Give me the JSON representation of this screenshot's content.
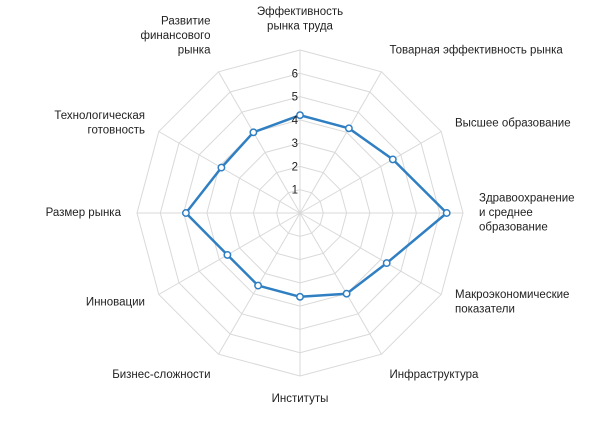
{
  "chart_data": {
    "type": "radar",
    "categories": [
      [
        "Эффективность",
        "рынка труда"
      ],
      [
        "Товарная эффективность рынка"
      ],
      [
        "Высшее образование"
      ],
      [
        "Здравоохранение",
        "и среднее",
        "образование"
      ],
      [
        "Макроэкономические",
        "показатели"
      ],
      [
        "Инфраструктура"
      ],
      [
        "Институты"
      ],
      [
        "Бизнес-сложности"
      ],
      [
        "Инновации"
      ],
      [
        "Размер рынка"
      ],
      [
        "Технологическая",
        "готовность"
      ],
      [
        "Развитие",
        "финансового",
        "рынка"
      ]
    ],
    "series": [
      {
        "values": [
          4.2,
          4.2,
          4.6,
          6.3,
          4.3,
          4.0,
          3.6,
          3.6,
          3.6,
          4.9,
          3.9,
          4.0
        ],
        "color": "#2f7fc2"
      }
    ],
    "rlim": [
      0,
      7
    ],
    "ticks": [
      1,
      2,
      3,
      4,
      5,
      6
    ],
    "grid": true,
    "grid_shape": "polygon",
    "legend": "none"
  }
}
